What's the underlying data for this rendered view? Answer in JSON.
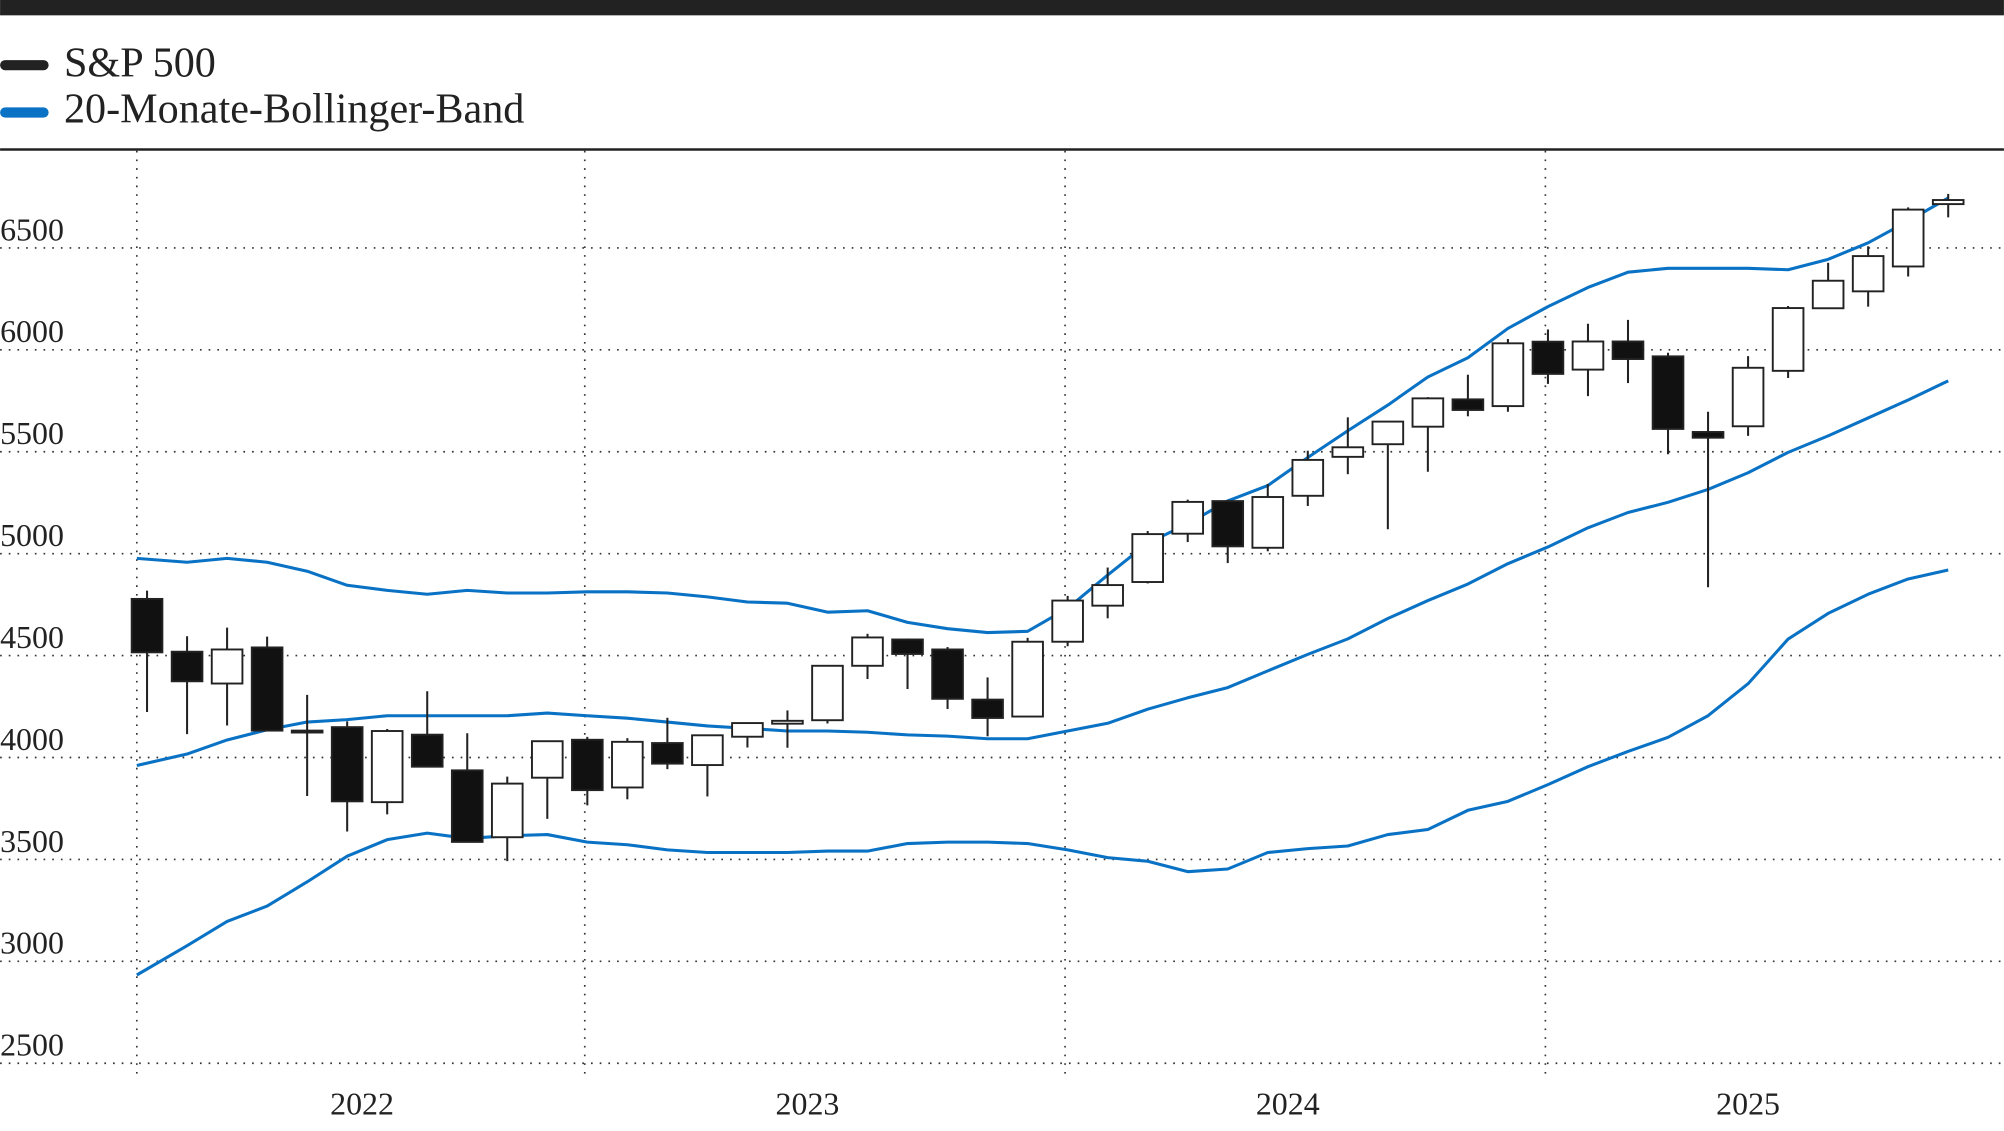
{
  "chart_data": {
    "type": "candlestick",
    "title": "",
    "xlabel": "",
    "ylabel": "",
    "ylim": [
      2500,
      6900
    ],
    "grid": true,
    "legend_position": "top-left",
    "legend": [
      {
        "label": "S&P 500",
        "color": "#222222"
      },
      {
        "label": "20-Monate-Bollinger-Band",
        "color": "#0a72c4"
      }
    ],
    "y_ticks": [
      2500,
      3000,
      3500,
      4000,
      4500,
      5000,
      5500,
      6000,
      6500
    ],
    "x_ticks": [
      {
        "label": "2022",
        "from": "2022-01",
        "to": "2022-11"
      },
      {
        "label": "2023",
        "from": "2022-12",
        "to": "2023-11"
      },
      {
        "label": "2024",
        "from": "2023-12",
        "to": "2024-11"
      },
      {
        "label": "2025",
        "from": "2024-12",
        "to": "2025-10"
      }
    ],
    "months": [
      "2022-01",
      "2022-02",
      "2022-03",
      "2022-04",
      "2022-05",
      "2022-06",
      "2022-07",
      "2022-08",
      "2022-09",
      "2022-10",
      "2022-11",
      "2022-12",
      "2023-01",
      "2023-02",
      "2023-03",
      "2023-04",
      "2023-05",
      "2023-06",
      "2023-07",
      "2023-08",
      "2023-09",
      "2023-10",
      "2023-11",
      "2023-12",
      "2024-01",
      "2024-02",
      "2024-03",
      "2024-04",
      "2024-05",
      "2024-06",
      "2024-07",
      "2024-08",
      "2024-09",
      "2024-10",
      "2024-11",
      "2024-12",
      "2025-01",
      "2025-02",
      "2025-03",
      "2025-04",
      "2025-05",
      "2025-06",
      "2025-07",
      "2025-08",
      "2025-09",
      "2025-10"
    ],
    "ohlc": [
      [
        4778,
        4819,
        4223,
        4516
      ],
      [
        4519,
        4595,
        4115,
        4374
      ],
      [
        4363,
        4637,
        4157,
        4530
      ],
      [
        4540,
        4593,
        4132,
        4132
      ],
      [
        4130,
        4307,
        3811,
        4132
      ],
      [
        4149,
        4177,
        3637,
        3785
      ],
      [
        3781,
        4140,
        3721,
        4130
      ],
      [
        4112,
        4325,
        3955,
        3955
      ],
      [
        3937,
        4119,
        3584,
        3586
      ],
      [
        3609,
        3906,
        3492,
        3872
      ],
      [
        3901,
        4080,
        3699,
        4080
      ],
      [
        4087,
        4101,
        3765,
        3840
      ],
      [
        3853,
        4095,
        3795,
        4077
      ],
      [
        4071,
        4195,
        3943,
        3970
      ],
      [
        3963,
        4110,
        3809,
        4109
      ],
      [
        4102,
        4170,
        4049,
        4169
      ],
      [
        4166,
        4231,
        4048,
        4180
      ],
      [
        4183,
        4449,
        4167,
        4450
      ],
      [
        4450,
        4607,
        4385,
        4589
      ],
      [
        4579,
        4584,
        4336,
        4508
      ],
      [
        4530,
        4542,
        4238,
        4288
      ],
      [
        4284,
        4393,
        4104,
        4194
      ],
      [
        4201,
        4587,
        4197,
        4568
      ],
      [
        4568,
        4793,
        4546,
        4770
      ],
      [
        4745,
        4932,
        4683,
        4846
      ],
      [
        4861,
        5111,
        4854,
        5096
      ],
      [
        5098,
        5265,
        5057,
        5254
      ],
      [
        5258,
        5264,
        4954,
        5036
      ],
      [
        5029,
        5342,
        5012,
        5278
      ],
      [
        5284,
        5505,
        5234,
        5460
      ],
      [
        5475,
        5669,
        5390,
        5522
      ],
      [
        5537,
        5651,
        5120,
        5648
      ],
      [
        5623,
        5768,
        5402,
        5762
      ],
      [
        5757,
        5878,
        5674,
        5705
      ],
      [
        5724,
        6053,
        5696,
        6032
      ],
      [
        6040,
        6100,
        5833,
        5882
      ],
      [
        5903,
        6128,
        5773,
        6041
      ],
      [
        6041,
        6147,
        5837,
        5955
      ],
      [
        5968,
        5986,
        5488,
        5612
      ],
      [
        5597,
        5696,
        4835,
        5569
      ],
      [
        5625,
        5969,
        5578,
        5912
      ],
      [
        5897,
        6215,
        5862,
        6205
      ],
      [
        6204,
        6427,
        6201,
        6339
      ],
      [
        6287,
        6508,
        6212,
        6460
      ],
      [
        6409,
        6699,
        6360,
        6688
      ],
      [
        6715,
        6765,
        6650,
        6735
      ]
    ],
    "bollinger": {
      "upper": [
        4977,
        4958,
        4977,
        4958,
        4914,
        4845,
        4820,
        4801,
        4820,
        4807,
        4807,
        4813,
        4813,
        4807,
        4788,
        4763,
        4757,
        4713,
        4720,
        4663,
        4632,
        4613,
        4619,
        4732,
        4895,
        5052,
        5146,
        5259,
        5334,
        5472,
        5603,
        5729,
        5867,
        5961,
        6105,
        6212,
        6306,
        6381,
        6400,
        6400,
        6400,
        6393,
        6444,
        6525,
        6632,
        6745
      ],
      "middle": [
        3961,
        4017,
        4086,
        4136,
        4174,
        4186,
        4205,
        4205,
        4205,
        4205,
        4218,
        4205,
        4193,
        4174,
        4155,
        4143,
        4130,
        4130,
        4124,
        4111,
        4105,
        4092,
        4092,
        4130,
        4168,
        4237,
        4293,
        4343,
        4425,
        4506,
        4582,
        4682,
        4770,
        4851,
        4951,
        5033,
        5127,
        5202,
        5252,
        5315,
        5397,
        5497,
        5578,
        5666,
        5754,
        5848
      ],
      "lower": [
        2933,
        3077,
        3196,
        3271,
        3390,
        3516,
        3597,
        3629,
        3603,
        3616,
        3622,
        3585,
        3572,
        3547,
        3534,
        3534,
        3534,
        3541,
        3541,
        3578,
        3585,
        3585,
        3578,
        3547,
        3509,
        3491,
        3440,
        3453,
        3534,
        3553,
        3566,
        3622,
        3647,
        3741,
        3785,
        3867,
        3955,
        4030,
        4099,
        4205,
        4362,
        4581,
        4707,
        4801,
        4876,
        4920
      ]
    }
  }
}
